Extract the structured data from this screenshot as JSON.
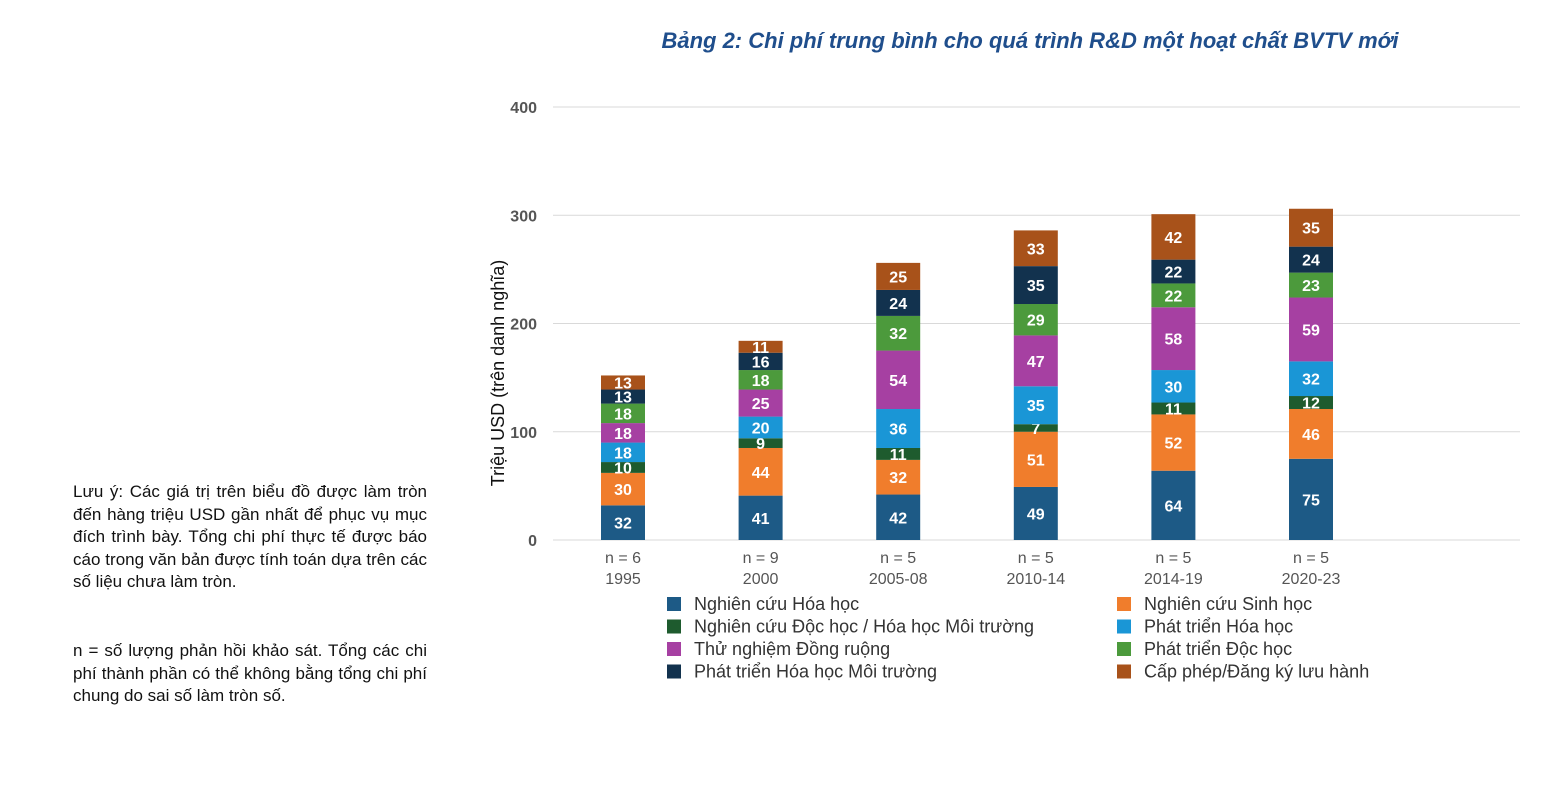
{
  "chart_data": {
    "type": "bar",
    "stacked": true,
    "title": "Bảng 2: Chi phí trung bình cho quá trình R&D một hoạt chất BVTV mới",
    "ylabel": "Triệu USD (trên danh nghĩa)",
    "xlabel": "",
    "ylim": [
      0,
      400
    ],
    "yticks": [
      "0",
      "100",
      "200",
      "300",
      "400"
    ],
    "grid": true,
    "legend_position": "bottom",
    "categories": [
      {
        "n": "n = 6",
        "year": "1995"
      },
      {
        "n": "n = 9",
        "year": "2000"
      },
      {
        "n": "n = 5",
        "year": "2005-08"
      },
      {
        "n": "n = 5",
        "year": "2010-14"
      },
      {
        "n": "n = 5",
        "year": "2014-19"
      },
      {
        "n": "n = 5",
        "year": "2020-23"
      }
    ],
    "series": [
      {
        "name": "Nghiên cứu Hóa học",
        "color": "#1d5a86",
        "values": [
          32,
          41,
          42,
          49,
          64,
          75
        ]
      },
      {
        "name": "Nghiên cứu Sinh học",
        "color": "#f07d2c",
        "values": [
          30,
          44,
          32,
          51,
          52,
          46
        ]
      },
      {
        "name": "Nghiên cứu Độc học / Hóa học Môi trường",
        "color": "#1e5b2e",
        "values": [
          10,
          9,
          11,
          7,
          11,
          12
        ]
      },
      {
        "name": "Phát triển Hóa học",
        "color": "#1a96d6",
        "values": [
          18,
          20,
          36,
          35,
          30,
          32
        ]
      },
      {
        "name": "Thử nghiệm Đồng ruộng",
        "color": "#a640a2",
        "values": [
          18,
          25,
          54,
          47,
          58,
          59
        ]
      },
      {
        "name": "Phát triển Độc học",
        "color": "#4c9a3c",
        "values": [
          18,
          18,
          32,
          29,
          22,
          23
        ]
      },
      {
        "name": "Phát triển Hóa học Môi trường",
        "color": "#12324e",
        "values": [
          13,
          16,
          24,
          35,
          22,
          24
        ]
      },
      {
        "name": "Cấp phép/Đăng ký lưu hành",
        "color": "#a8521a",
        "values": [
          13,
          11,
          25,
          33,
          42,
          35
        ]
      }
    ]
  },
  "notes": {
    "rounding": "Lưu ý: Các giá trị trên biểu đồ được làm tròn đến hàng triệu USD gần nhất để phục vụ mục đích trình bày. Tổng chi phí thực tế được báo cáo trong văn bản được tính toán dựa trên các số liệu chưa làm tròn.",
    "n_def": "n = số lượng phản hồi khảo sát. Tổng các chi phí thành phần có thể không bằng tổng chi phí chung do sai số làm tròn số."
  }
}
